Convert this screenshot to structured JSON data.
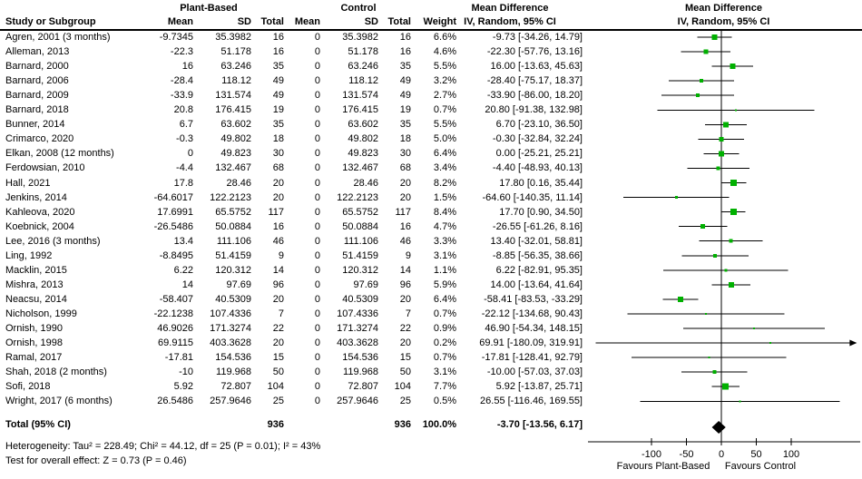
{
  "header": {
    "col_study": "Study or Subgroup",
    "group1": "Plant-Based",
    "group2": "Control",
    "col_mean": "Mean",
    "col_sd": "SD",
    "col_total": "Total",
    "col_weight": "Weight",
    "md_title": "Mean Difference",
    "md_subtitle": "IV, Random, 95% CI"
  },
  "studies": [
    {
      "label": "Agren, 2001 (3 months)",
      "mean1": "-9.7345",
      "sd1": "35.3982",
      "total1": "16",
      "mean2": "0",
      "sd2": "35.3982",
      "total2": "16",
      "weight": "6.6%",
      "ci": "-9.73 [-34.26, 14.79]"
    },
    {
      "label": "Alleman, 2013",
      "mean1": "-22.3",
      "sd1": "51.178",
      "total1": "16",
      "mean2": "0",
      "sd2": "51.178",
      "total2": "16",
      "weight": "4.6%",
      "ci": "-22.30 [-57.76, 13.16]"
    },
    {
      "label": "Barnard, 2000",
      "mean1": "16",
      "sd1": "63.246",
      "total1": "35",
      "mean2": "0",
      "sd2": "63.246",
      "total2": "35",
      "weight": "5.5%",
      "ci": "16.00 [-13.63, 45.63]"
    },
    {
      "label": "Barnard, 2006",
      "mean1": "-28.4",
      "sd1": "118.12",
      "total1": "49",
      "mean2": "0",
      "sd2": "118.12",
      "total2": "49",
      "weight": "3.2%",
      "ci": "-28.40 [-75.17, 18.37]"
    },
    {
      "label": "Barnard, 2009",
      "mean1": "-33.9",
      "sd1": "131.574",
      "total1": "49",
      "mean2": "0",
      "sd2": "131.574",
      "total2": "49",
      "weight": "2.7%",
      "ci": "-33.90 [-86.00, 18.20]"
    },
    {
      "label": "Barnard, 2018",
      "mean1": "20.8",
      "sd1": "176.415",
      "total1": "19",
      "mean2": "0",
      "sd2": "176.415",
      "total2": "19",
      "weight": "0.7%",
      "ci": "20.80 [-91.38, 132.98]"
    },
    {
      "label": "Bunner, 2014",
      "mean1": "6.7",
      "sd1": "63.602",
      "total1": "35",
      "mean2": "0",
      "sd2": "63.602",
      "total2": "35",
      "weight": "5.5%",
      "ci": "6.70 [-23.10, 36.50]"
    },
    {
      "label": "Crimarco, 2020",
      "mean1": "-0.3",
      "sd1": "49.802",
      "total1": "18",
      "mean2": "0",
      "sd2": "49.802",
      "total2": "18",
      "weight": "5.0%",
      "ci": "-0.30 [-32.84, 32.24]"
    },
    {
      "label": "Elkan, 2008 (12 months)",
      "mean1": "0",
      "sd1": "49.823",
      "total1": "30",
      "mean2": "0",
      "sd2": "49.823",
      "total2": "30",
      "weight": "6.4%",
      "ci": "0.00 [-25.21, 25.21]"
    },
    {
      "label": "Ferdowsian, 2010",
      "mean1": "-4.4",
      "sd1": "132.467",
      "total1": "68",
      "mean2": "0",
      "sd2": "132.467",
      "total2": "68",
      "weight": "3.4%",
      "ci": "-4.40 [-48.93, 40.13]"
    },
    {
      "label": "Hall, 2021",
      "mean1": "17.8",
      "sd1": "28.46",
      "total1": "20",
      "mean2": "0",
      "sd2": "28.46",
      "total2": "20",
      "weight": "8.2%",
      "ci": "17.80 [0.16, 35.44]"
    },
    {
      "label": "Jenkins, 2014",
      "mean1": "-64.6017",
      "sd1": "122.2123",
      "total1": "20",
      "mean2": "0",
      "sd2": "122.2123",
      "total2": "20",
      "weight": "1.5%",
      "ci": "-64.60 [-140.35, 11.14]"
    },
    {
      "label": "Kahleova, 2020",
      "mean1": "17.6991",
      "sd1": "65.5752",
      "total1": "117",
      "mean2": "0",
      "sd2": "65.5752",
      "total2": "117",
      "weight": "8.4%",
      "ci": "17.70 [0.90, 34.50]"
    },
    {
      "label": "Koebnick, 2004",
      "mean1": "-26.5486",
      "sd1": "50.0884",
      "total1": "16",
      "mean2": "0",
      "sd2": "50.0884",
      "total2": "16",
      "weight": "4.7%",
      "ci": "-26.55 [-61.26, 8.16]"
    },
    {
      "label": "Lee, 2016 (3 months)",
      "mean1": "13.4",
      "sd1": "111.106",
      "total1": "46",
      "mean2": "0",
      "sd2": "111.106",
      "total2": "46",
      "weight": "3.3%",
      "ci": "13.40 [-32.01, 58.81]"
    },
    {
      "label": "Ling, 1992",
      "mean1": "-8.8495",
      "sd1": "51.4159",
      "total1": "9",
      "mean2": "0",
      "sd2": "51.4159",
      "total2": "9",
      "weight": "3.1%",
      "ci": "-8.85 [-56.35, 38.66]"
    },
    {
      "label": "Macklin, 2015",
      "mean1": "6.22",
      "sd1": "120.312",
      "total1": "14",
      "mean2": "0",
      "sd2": "120.312",
      "total2": "14",
      "weight": "1.1%",
      "ci": "6.22 [-82.91, 95.35]"
    },
    {
      "label": "Mishra, 2013",
      "mean1": "14",
      "sd1": "97.69",
      "total1": "96",
      "mean2": "0",
      "sd2": "97.69",
      "total2": "96",
      "weight": "5.9%",
      "ci": "14.00 [-13.64, 41.64]"
    },
    {
      "label": "Neacsu, 2014",
      "mean1": "-58.407",
      "sd1": "40.5309",
      "total1": "20",
      "mean2": "0",
      "sd2": "40.5309",
      "total2": "20",
      "weight": "6.4%",
      "ci": "-58.41 [-83.53, -33.29]"
    },
    {
      "label": "Nicholson, 1999",
      "mean1": "-22.1238",
      "sd1": "107.4336",
      "total1": "7",
      "mean2": "0",
      "sd2": "107.4336",
      "total2": "7",
      "weight": "0.7%",
      "ci": "-22.12 [-134.68, 90.43]"
    },
    {
      "label": "Ornish, 1990",
      "mean1": "46.9026",
      "sd1": "171.3274",
      "total1": "22",
      "mean2": "0",
      "sd2": "171.3274",
      "total2": "22",
      "weight": "0.9%",
      "ci": "46.90 [-54.34, 148.15]"
    },
    {
      "label": "Ornish, 1998",
      "mean1": "69.9115",
      "sd1": "403.3628",
      "total1": "20",
      "mean2": "0",
      "sd2": "403.3628",
      "total2": "20",
      "weight": "0.2%",
      "ci": "69.91 [-180.09, 319.91]"
    },
    {
      "label": "Ramal, 2017",
      "mean1": "-17.81",
      "sd1": "154.536",
      "total1": "15",
      "mean2": "0",
      "sd2": "154.536",
      "total2": "15",
      "weight": "0.7%",
      "ci": "-17.81 [-128.41, 92.79]"
    },
    {
      "label": "Shah, 2018 (2 months)",
      "mean1": "-10",
      "sd1": "119.968",
      "total1": "50",
      "mean2": "0",
      "sd2": "119.968",
      "total2": "50",
      "weight": "3.1%",
      "ci": "-10.00 [-57.03, 37.03]"
    },
    {
      "label": "Sofi, 2018",
      "mean1": "5.92",
      "sd1": "72.807",
      "total1": "104",
      "mean2": "0",
      "sd2": "72.807",
      "total2": "104",
      "weight": "7.7%",
      "ci": "5.92 [-13.87, 25.71]"
    },
    {
      "label": "Wright, 2017 (6 months)",
      "mean1": "26.5486",
      "sd1": "257.9646",
      "total1": "25",
      "mean2": "0",
      "sd2": "257.9646",
      "total2": "25",
      "weight": "0.5%",
      "ci": "26.55 [-116.46, 169.55]"
    }
  ],
  "total": {
    "label": "Total (95% CI)",
    "total1": "936",
    "total2": "936",
    "weight": "100.0%",
    "ci": "-3.70 [-13.56, 6.17]"
  },
  "footer": {
    "heterogeneity": "Heterogeneity: Tau² = 228.49; Chi² = 44.12, df = 25 (P = 0.01); I² = 43%",
    "overall_effect": "Test for overall effect: Z = 0.73 (P = 0.46)"
  },
  "chart_data": {
    "type": "scatter",
    "subtype": "forest-plot",
    "title": "Mean Difference",
    "subtitle": "IV, Random, 95% CI",
    "x_axis": {
      "ticks": [
        -100,
        -50,
        0,
        50,
        100
      ],
      "min": -190,
      "max": 194,
      "zero_line": 0,
      "label_left": "Favours Plant-Based",
      "label_right": "Favours Control"
    },
    "marker_color": "#00b000",
    "line_color": "#000000",
    "points": [
      {
        "name": "Agren, 2001 (3 months)",
        "est": -9.73,
        "lo": -34.26,
        "hi": 14.79,
        "weight": 6.6
      },
      {
        "name": "Alleman, 2013",
        "est": -22.3,
        "lo": -57.76,
        "hi": 13.16,
        "weight": 4.6
      },
      {
        "name": "Barnard, 2000",
        "est": 16.0,
        "lo": -13.63,
        "hi": 45.63,
        "weight": 5.5
      },
      {
        "name": "Barnard, 2006",
        "est": -28.4,
        "lo": -75.17,
        "hi": 18.37,
        "weight": 3.2
      },
      {
        "name": "Barnard, 2009",
        "est": -33.9,
        "lo": -86.0,
        "hi": 18.2,
        "weight": 2.7
      },
      {
        "name": "Barnard, 2018",
        "est": 20.8,
        "lo": -91.38,
        "hi": 132.98,
        "weight": 0.7
      },
      {
        "name": "Bunner, 2014",
        "est": 6.7,
        "lo": -23.1,
        "hi": 36.5,
        "weight": 5.5
      },
      {
        "name": "Crimarco, 2020",
        "est": -0.3,
        "lo": -32.84,
        "hi": 32.24,
        "weight": 5.0
      },
      {
        "name": "Elkan, 2008 (12 months)",
        "est": 0.0,
        "lo": -25.21,
        "hi": 25.21,
        "weight": 6.4
      },
      {
        "name": "Ferdowsian, 2010",
        "est": -4.4,
        "lo": -48.93,
        "hi": 40.13,
        "weight": 3.4
      },
      {
        "name": "Hall, 2021",
        "est": 17.8,
        "lo": 0.16,
        "hi": 35.44,
        "weight": 8.2
      },
      {
        "name": "Jenkins, 2014",
        "est": -64.6,
        "lo": -140.35,
        "hi": 11.14,
        "weight": 1.5
      },
      {
        "name": "Kahleova, 2020",
        "est": 17.7,
        "lo": 0.9,
        "hi": 34.5,
        "weight": 8.4
      },
      {
        "name": "Koebnick, 2004",
        "est": -26.55,
        "lo": -61.26,
        "hi": 8.16,
        "weight": 4.7
      },
      {
        "name": "Lee, 2016 (3 months)",
        "est": 13.4,
        "lo": -32.01,
        "hi": 58.81,
        "weight": 3.3
      },
      {
        "name": "Ling, 1992",
        "est": -8.85,
        "lo": -56.35,
        "hi": 38.66,
        "weight": 3.1
      },
      {
        "name": "Macklin, 2015",
        "est": 6.22,
        "lo": -82.91,
        "hi": 95.35,
        "weight": 1.1
      },
      {
        "name": "Mishra, 2013",
        "est": 14.0,
        "lo": -13.64,
        "hi": 41.64,
        "weight": 5.9
      },
      {
        "name": "Neacsu, 2014",
        "est": -58.41,
        "lo": -83.53,
        "hi": -33.29,
        "weight": 6.4
      },
      {
        "name": "Nicholson, 1999",
        "est": -22.12,
        "lo": -134.68,
        "hi": 90.43,
        "weight": 0.7
      },
      {
        "name": "Ornish, 1990",
        "est": 46.9,
        "lo": -54.34,
        "hi": 148.15,
        "weight": 0.9
      },
      {
        "name": "Ornish, 1998",
        "est": 69.91,
        "lo": -180.09,
        "hi": 319.91,
        "weight": 0.2
      },
      {
        "name": "Ramal, 2017",
        "est": -17.81,
        "lo": -128.41,
        "hi": 92.79,
        "weight": 0.7
      },
      {
        "name": "Shah, 2018 (2 months)",
        "est": -10.0,
        "lo": -57.03,
        "hi": 37.03,
        "weight": 3.1
      },
      {
        "name": "Sofi, 2018",
        "est": 5.92,
        "lo": -13.87,
        "hi": 25.71,
        "weight": 7.7
      },
      {
        "name": "Wright, 2017 (6 months)",
        "est": 26.55,
        "lo": -116.46,
        "hi": 169.55,
        "weight": 0.5
      }
    ],
    "total": {
      "name": "Total (95% CI)",
      "est": -3.7,
      "lo": -13.56,
      "hi": 6.17
    }
  }
}
